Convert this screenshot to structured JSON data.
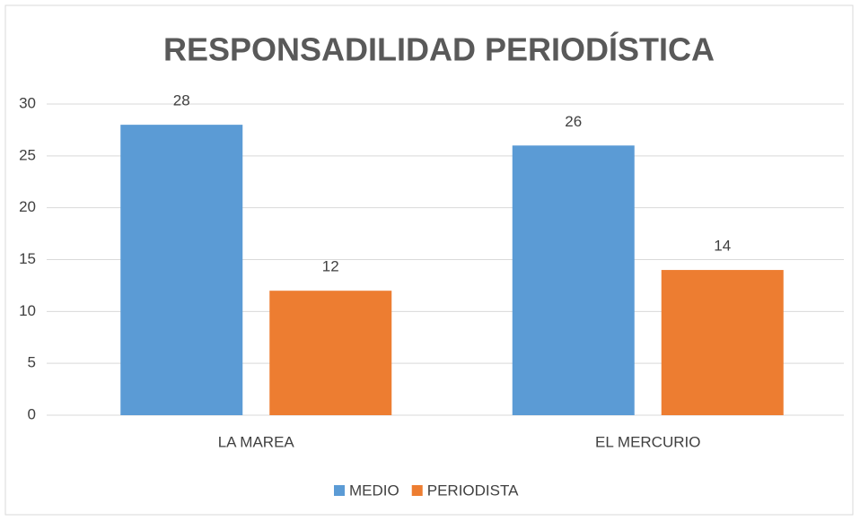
{
  "chart_data": {
    "type": "bar",
    "title": "RESPONSADILIDAD PERIODÍSTICA",
    "categories": [
      "LA MAREA",
      "EL MERCURIO"
    ],
    "series": [
      {
        "name": "MEDIO",
        "color": "#5b9bd5",
        "values": [
          28,
          26
        ]
      },
      {
        "name": "PERIODISTA",
        "color": "#ed7d31",
        "values": [
          12,
          14
        ]
      }
    ],
    "ylim": [
      0,
      30
    ],
    "yticks": [
      0,
      5,
      10,
      15,
      20,
      25,
      30
    ],
    "grid": true,
    "legend": "bottom"
  }
}
